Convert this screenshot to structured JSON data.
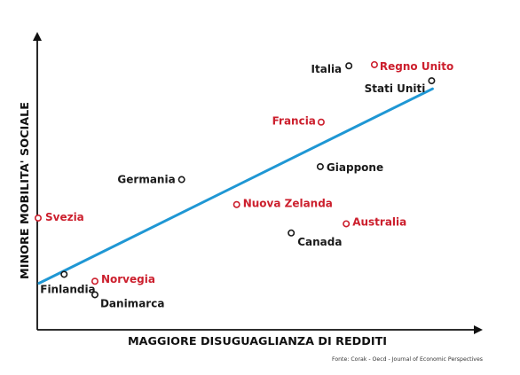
{
  "chart_data": {
    "type": "scatter",
    "xlabel": "MAGGIORE DISUGUAGLIANZA DI REDDITI",
    "ylabel": "MINORE MOBILITA' SOCIALE",
    "source": "Fonte: Corak - Oecd - Journal of Economic Perspectives",
    "xlim": [
      0,
      100
    ],
    "ylim": [
      0,
      100
    ],
    "grid": false,
    "colors": {
      "highlight": "#cc1f2d",
      "normal": "#1a1a1a",
      "trend": "#1f97d4",
      "axis": "#111111"
    },
    "points": [
      {
        "name": "Italia",
        "x": 70.8,
        "y": 91.9,
        "highlight": false
      },
      {
        "name": "Regno Unito",
        "x": 76.6,
        "y": 92.3,
        "highlight": true
      },
      {
        "name": "Stati Uniti",
        "x": 89.6,
        "y": 86.7,
        "highlight": false
      },
      {
        "name": "Francia",
        "x": 64.5,
        "y": 72.3,
        "highlight": true
      },
      {
        "name": "Giappone",
        "x": 64.3,
        "y": 56.8,
        "highlight": false
      },
      {
        "name": "Germania",
        "x": 32.8,
        "y": 52.3,
        "highlight": false
      },
      {
        "name": "Nuova Zelanda",
        "x": 45.3,
        "y": 43.6,
        "highlight": true
      },
      {
        "name": "Svezia",
        "x": 0.2,
        "y": 38.9,
        "highlight": true
      },
      {
        "name": "Australia",
        "x": 70.2,
        "y": 36.9,
        "highlight": true
      },
      {
        "name": "Canada",
        "x": 57.7,
        "y": 33.7,
        "highlight": false
      },
      {
        "name": "Finlandia",
        "x": 6.1,
        "y": 19.3,
        "highlight": false
      },
      {
        "name": "Norvegia",
        "x": 13.1,
        "y": 16.9,
        "highlight": true
      },
      {
        "name": "Danimarca",
        "x": 13.1,
        "y": 12.2,
        "highlight": false
      }
    ],
    "trendline": [
      {
        "x": 0.4,
        "y": 16.2
      },
      {
        "x": 89.8,
        "y": 83.9
      }
    ]
  }
}
